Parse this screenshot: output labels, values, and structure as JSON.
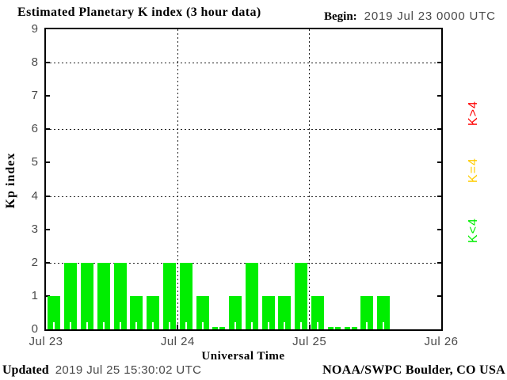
{
  "header": {
    "title": "Estimated Planetary K index (3 hour data)",
    "begin_label": "Begin:",
    "begin_value": "2019 Jul 23 0000 UTC"
  },
  "footer": {
    "updated_label": "Updated",
    "updated_value": "2019 Jul 25 15:30:02 UTC",
    "credit": "NOAA/SWPC Boulder, CO USA"
  },
  "chart_data": {
    "type": "bar",
    "title": "Estimated Planetary K index (3 hour data)",
    "xlabel": "Universal Time",
    "ylabel": "Kp index",
    "ylim": [
      0,
      9
    ],
    "y_ticks": [
      0,
      1,
      2,
      3,
      4,
      5,
      6,
      7,
      8,
      9
    ],
    "grid_values": [
      2,
      4,
      6,
      8
    ],
    "x_ticks": [
      "Jul 23",
      "Jul 24",
      "Jul 25",
      "Jul 26"
    ],
    "interval_hours": 3,
    "begin": "2019 Jul 23 0000 UTC",
    "days": [
      {
        "date": "Jul 23",
        "values": [
          1,
          2,
          2,
          2,
          2,
          1,
          1,
          2
        ]
      },
      {
        "date": "Jul 24",
        "values": [
          2,
          1,
          0,
          1,
          2,
          1,
          1,
          2
        ]
      },
      {
        "date": "Jul 25",
        "values": [
          1,
          0,
          0,
          1,
          1
        ]
      }
    ],
    "bar_color": "#00ee00",
    "grid_on": true,
    "legend_position": "right",
    "legend": [
      {
        "label": "K>4",
        "color": "#ff0000"
      },
      {
        "label": "K=4",
        "color": "#ffcc00"
      },
      {
        "label": "K<4",
        "color": "#00ee00"
      }
    ]
  }
}
